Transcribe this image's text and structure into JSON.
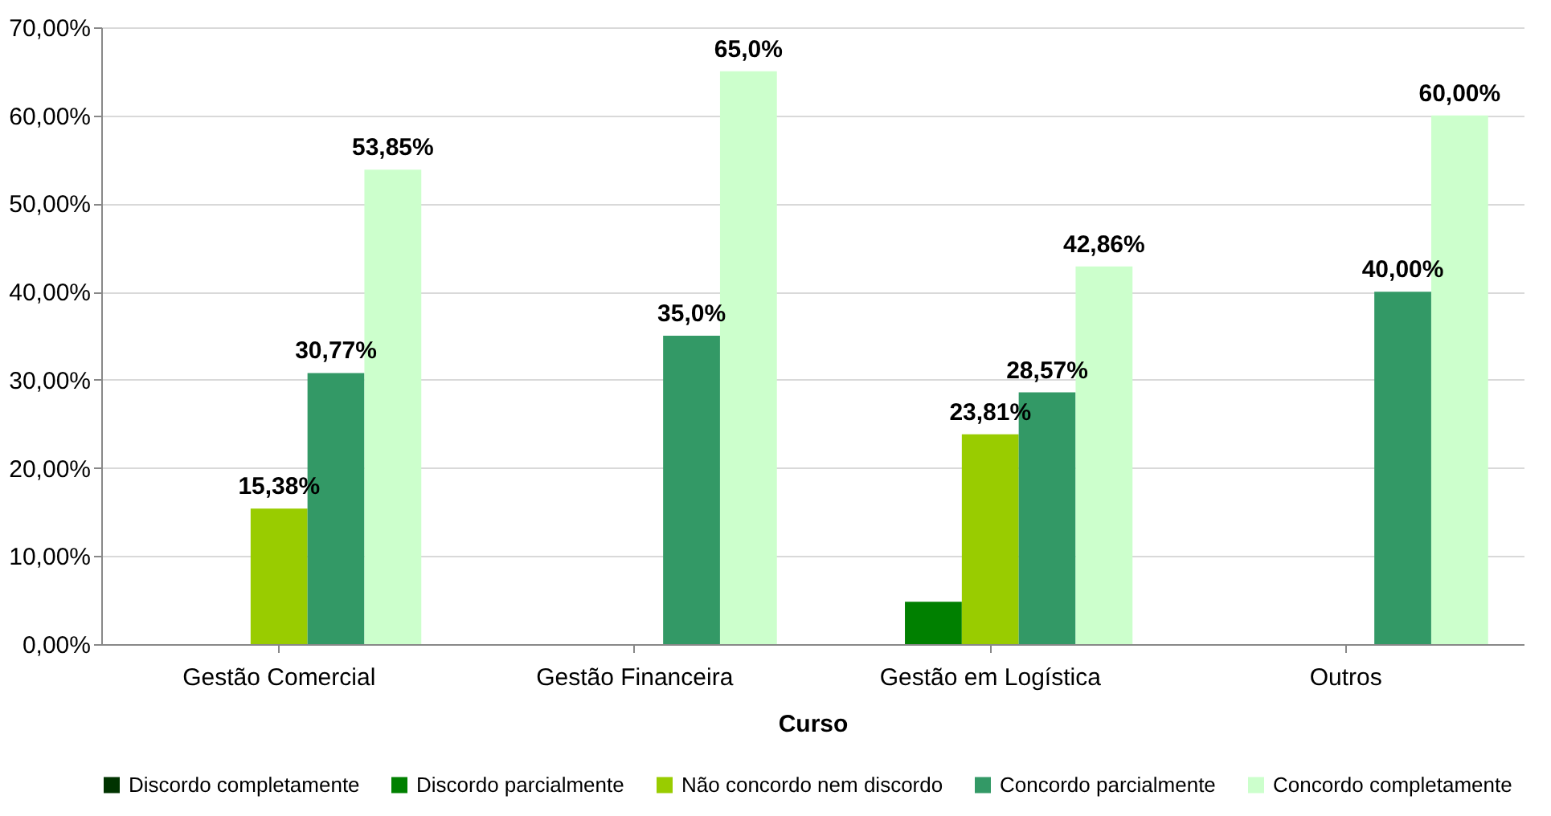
{
  "chart_data": {
    "type": "bar",
    "xlabel": "Curso",
    "categories": [
      "Gestão Comercial",
      "Gestão Financeira",
      "Gestão em Logística",
      "Outros"
    ],
    "series": [
      {
        "name": "Discordo completamente",
        "color": "#003300",
        "values": [
          null,
          null,
          null,
          null
        ]
      },
      {
        "name": "Discordo parcialmente",
        "color": "#008000",
        "values": [
          null,
          null,
          4.8,
          null
        ]
      },
      {
        "name": "Não concordo nem discordo",
        "color": "#99cc00",
        "values": [
          15.38,
          null,
          23.81,
          null
        ],
        "value_labels": [
          "15,38%",
          null,
          "23,81%",
          null
        ]
      },
      {
        "name": "Concordo parcialmente",
        "color": "#339966",
        "values": [
          30.77,
          35.0,
          28.57,
          40.0
        ],
        "value_labels": [
          "30,77%",
          "35,0%",
          "28,57%",
          "40,00%"
        ]
      },
      {
        "name": "Concordo completamente",
        "color": "#ccffcc",
        "values": [
          53.85,
          65.0,
          42.86,
          60.0
        ],
        "value_labels": [
          "53,85%",
          "65,0%",
          "42,86%",
          "60,00%"
        ]
      }
    ],
    "ylim": [
      0,
      70
    ],
    "yticks": [
      {
        "value": 0,
        "label": "0,00%"
      },
      {
        "value": 10,
        "label": "10,00%"
      },
      {
        "value": 20,
        "label": "20,00%"
      },
      {
        "value": 30,
        "label": "30,00%"
      },
      {
        "value": 40,
        "label": "40,00%"
      },
      {
        "value": 50,
        "label": "50,00%"
      },
      {
        "value": 60,
        "label": "60,00%"
      },
      {
        "value": 70,
        "label": "70,00%"
      }
    ],
    "grid": "y",
    "legend": "bottom"
  }
}
